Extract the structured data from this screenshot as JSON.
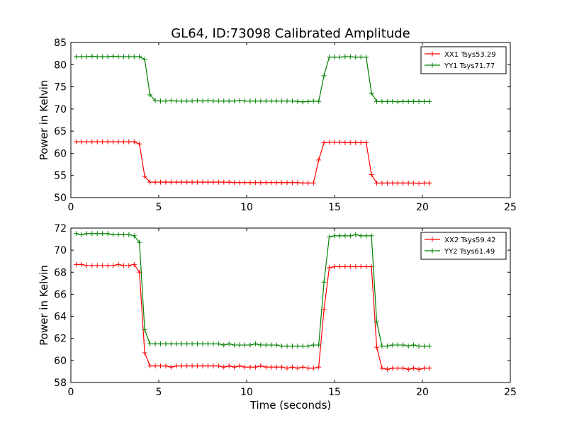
{
  "figure_title": "GL64, ID:73098 Calibrated Amplitude",
  "chart_data": [
    {
      "type": "line",
      "title": "GL64, ID:73098 Calibrated Amplitude",
      "xlabel": "",
      "ylabel": "Power in Kelvin",
      "xlim": [
        0,
        25
      ],
      "ylim": [
        50,
        85
      ],
      "x_ticks": [
        0,
        5,
        10,
        15,
        20,
        25
      ],
      "y_ticks": [
        50,
        55,
        60,
        65,
        70,
        75,
        80,
        85
      ],
      "grid": false,
      "legend_position": "top-right",
      "x": [
        0.3,
        0.6,
        0.9,
        1.2,
        1.5,
        1.8,
        2.1,
        2.4,
        2.7,
        3.0,
        3.3,
        3.6,
        3.9,
        4.2,
        4.5,
        4.8,
        5.1,
        5.4,
        5.7,
        6.0,
        6.3,
        6.6,
        6.9,
        7.2,
        7.5,
        7.8,
        8.1,
        8.4,
        8.7,
        9.0,
        9.3,
        9.6,
        9.9,
        10.2,
        10.5,
        10.8,
        11.1,
        11.4,
        11.7,
        12.0,
        12.3,
        12.6,
        12.9,
        13.2,
        13.5,
        13.8,
        14.1,
        14.4,
        14.7,
        15.0,
        15.3,
        15.6,
        15.9,
        16.2,
        16.5,
        16.8,
        17.1,
        17.4,
        17.7,
        18.0,
        18.3,
        18.6,
        18.9,
        19.2,
        19.5,
        19.8,
        20.1,
        20.4
      ],
      "series": [
        {
          "name": "XX1 Tsys53.29",
          "color": "#ff0000",
          "values": [
            62.6,
            62.6,
            62.6,
            62.6,
            62.6,
            62.6,
            62.6,
            62.6,
            62.6,
            62.6,
            62.6,
            62.6,
            62.1,
            54.8,
            53.5,
            53.5,
            53.5,
            53.5,
            53.5,
            53.5,
            53.5,
            53.5,
            53.5,
            53.5,
            53.5,
            53.5,
            53.5,
            53.5,
            53.5,
            53.5,
            53.4,
            53.4,
            53.4,
            53.4,
            53.4,
            53.4,
            53.4,
            53.4,
            53.4,
            53.4,
            53.4,
            53.4,
            53.4,
            53.3,
            53.3,
            53.3,
            58.5,
            62.4,
            62.5,
            62.5,
            62.5,
            62.4,
            62.4,
            62.4,
            62.4,
            62.4,
            55.2,
            53.3,
            53.3,
            53.3,
            53.3,
            53.3,
            53.3,
            53.3,
            53.3,
            53.2,
            53.3,
            53.3
          ]
        },
        {
          "name": "YY1 Tsys71.77",
          "color": "#008000",
          "values": [
            81.8,
            81.8,
            81.8,
            81.9,
            81.8,
            81.8,
            81.8,
            81.9,
            81.8,
            81.8,
            81.8,
            81.8,
            81.8,
            81.2,
            73.2,
            71.9,
            71.8,
            71.8,
            71.9,
            71.8,
            71.8,
            71.8,
            71.8,
            71.9,
            71.8,
            71.9,
            71.8,
            71.8,
            71.8,
            71.8,
            71.8,
            71.9,
            71.8,
            71.8,
            71.8,
            71.8,
            71.8,
            71.8,
            71.8,
            71.8,
            71.8,
            71.8,
            71.7,
            71.6,
            71.7,
            71.8,
            71.7,
            77.5,
            81.7,
            81.7,
            81.7,
            81.8,
            81.8,
            81.7,
            81.7,
            81.7,
            73.6,
            71.7,
            71.7,
            71.7,
            71.7,
            71.6,
            71.7,
            71.7,
            71.7,
            71.7,
            71.7,
            71.7
          ]
        }
      ]
    },
    {
      "type": "line",
      "title": "",
      "xlabel": "Time (seconds)",
      "ylabel": "Power in Kelvin",
      "xlim": [
        0,
        25
      ],
      "ylim": [
        58,
        72
      ],
      "x_ticks": [
        0,
        5,
        10,
        15,
        20,
        25
      ],
      "y_ticks": [
        58,
        60,
        62,
        64,
        66,
        68,
        70,
        72
      ],
      "grid": false,
      "legend_position": "top-right",
      "x": [
        0.3,
        0.6,
        0.9,
        1.2,
        1.5,
        1.8,
        2.1,
        2.4,
        2.7,
        3.0,
        3.3,
        3.6,
        3.9,
        4.2,
        4.5,
        4.8,
        5.1,
        5.4,
        5.7,
        6.0,
        6.3,
        6.6,
        6.9,
        7.2,
        7.5,
        7.8,
        8.1,
        8.4,
        8.7,
        9.0,
        9.3,
        9.6,
        9.9,
        10.2,
        10.5,
        10.8,
        11.1,
        11.4,
        11.7,
        12.0,
        12.3,
        12.6,
        12.9,
        13.2,
        13.5,
        13.8,
        14.1,
        14.4,
        14.7,
        15.0,
        15.3,
        15.6,
        15.9,
        16.2,
        16.5,
        16.8,
        17.1,
        17.4,
        17.7,
        18.0,
        18.3,
        18.6,
        18.9,
        19.2,
        19.5,
        19.8,
        20.1,
        20.4
      ],
      "series": [
        {
          "name": "XX2 Tsys59.42",
          "color": "#ff0000",
          "values": [
            68.7,
            68.7,
            68.6,
            68.6,
            68.6,
            68.6,
            68.6,
            68.6,
            68.7,
            68.6,
            68.6,
            68.7,
            68.0,
            60.7,
            59.5,
            59.5,
            59.5,
            59.5,
            59.4,
            59.5,
            59.5,
            59.5,
            59.5,
            59.5,
            59.5,
            59.5,
            59.5,
            59.5,
            59.4,
            59.5,
            59.4,
            59.5,
            59.4,
            59.4,
            59.4,
            59.5,
            59.4,
            59.4,
            59.4,
            59.4,
            59.3,
            59.4,
            59.3,
            59.4,
            59.3,
            59.3,
            59.4,
            64.6,
            68.4,
            68.5,
            68.5,
            68.5,
            68.5,
            68.5,
            68.5,
            68.5,
            68.5,
            61.2,
            59.3,
            59.2,
            59.3,
            59.3,
            59.3,
            59.2,
            59.3,
            59.2,
            59.3,
            59.3
          ]
        },
        {
          "name": "YY2 Tsys61.49",
          "color": "#008000",
          "values": [
            71.5,
            71.4,
            71.5,
            71.5,
            71.5,
            71.5,
            71.5,
            71.4,
            71.4,
            71.4,
            71.4,
            71.3,
            70.7,
            62.8,
            61.5,
            61.5,
            61.5,
            61.5,
            61.5,
            61.5,
            61.5,
            61.5,
            61.5,
            61.5,
            61.5,
            61.5,
            61.5,
            61.5,
            61.4,
            61.5,
            61.4,
            61.4,
            61.4,
            61.4,
            61.5,
            61.4,
            61.4,
            61.4,
            61.4,
            61.3,
            61.3,
            61.3,
            61.3,
            61.3,
            61.3,
            61.4,
            61.4,
            67.1,
            71.2,
            71.3,
            71.3,
            71.3,
            71.3,
            71.4,
            71.3,
            71.3,
            71.3,
            63.5,
            61.3,
            61.3,
            61.4,
            61.4,
            61.4,
            61.3,
            61.4,
            61.3,
            61.3,
            61.3
          ]
        }
      ]
    }
  ]
}
